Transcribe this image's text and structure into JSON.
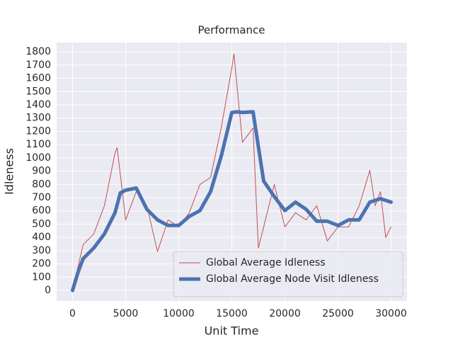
{
  "chart_data": {
    "type": "line",
    "title": "Performance",
    "xlabel": "Unit Time",
    "ylabel": "Idleness",
    "series": [
      {
        "name": "Global Average Idleness",
        "color": "#c44e52",
        "linewidth": 1,
        "x": [
          0,
          1000,
          2000,
          3000,
          4000,
          4200,
          5000,
          6000,
          7000,
          8000,
          9000,
          10000,
          11000,
          12000,
          13000,
          14000,
          15000,
          15200,
          16000,
          17000,
          17500,
          18000,
          19000,
          20000,
          21000,
          22000,
          23000,
          24000,
          25000,
          26000,
          27000,
          28000,
          28500,
          29000,
          29500,
          30000
        ],
        "values": [
          0,
          346,
          426,
          639,
          1038,
          1076,
          532,
          745,
          639,
          293,
          532,
          479,
          586,
          799,
          852,
          1225,
          1677,
          1784,
          1118,
          1225,
          320,
          479,
          799,
          479,
          586,
          532,
          639,
          373,
          479,
          479,
          639,
          905,
          639,
          745,
          399,
          479
        ]
      },
      {
        "name": "Global Average Node Visit Idleness",
        "color": "#4c72b0",
        "linewidth": 5,
        "x": [
          0,
          500,
          1000,
          2000,
          3000,
          4000,
          4500,
          5000,
          6000,
          7000,
          8000,
          9000,
          10000,
          11000,
          12000,
          13000,
          14000,
          15000,
          15500,
          16000,
          17000,
          18000,
          19000,
          20000,
          21000,
          22000,
          23000,
          24000,
          25000,
          26000,
          27000,
          28000,
          29000,
          30000
        ],
        "values": [
          0,
          133,
          240,
          320,
          426,
          586,
          735,
          756,
          772,
          612,
          532,
          490,
          490,
          559,
          602,
          745,
          1012,
          1342,
          1347,
          1342,
          1347,
          825,
          708,
          602,
          666,
          612,
          522,
          522,
          490,
          532,
          532,
          666,
          692,
          666
        ]
      }
    ],
    "xlim": [
      -1500,
      31500
    ],
    "xticks": [
      0,
      5000,
      10000,
      15000,
      20000,
      25000,
      30000
    ],
    "ylim": [
      -80,
      1870
    ],
    "yticks": [
      0,
      100,
      200,
      300,
      400,
      500,
      600,
      700,
      800,
      900,
      1000,
      1100,
      1200,
      1300,
      1400,
      1500,
      1600,
      1700,
      1800
    ],
    "grid": true,
    "legend": "lower right"
  }
}
